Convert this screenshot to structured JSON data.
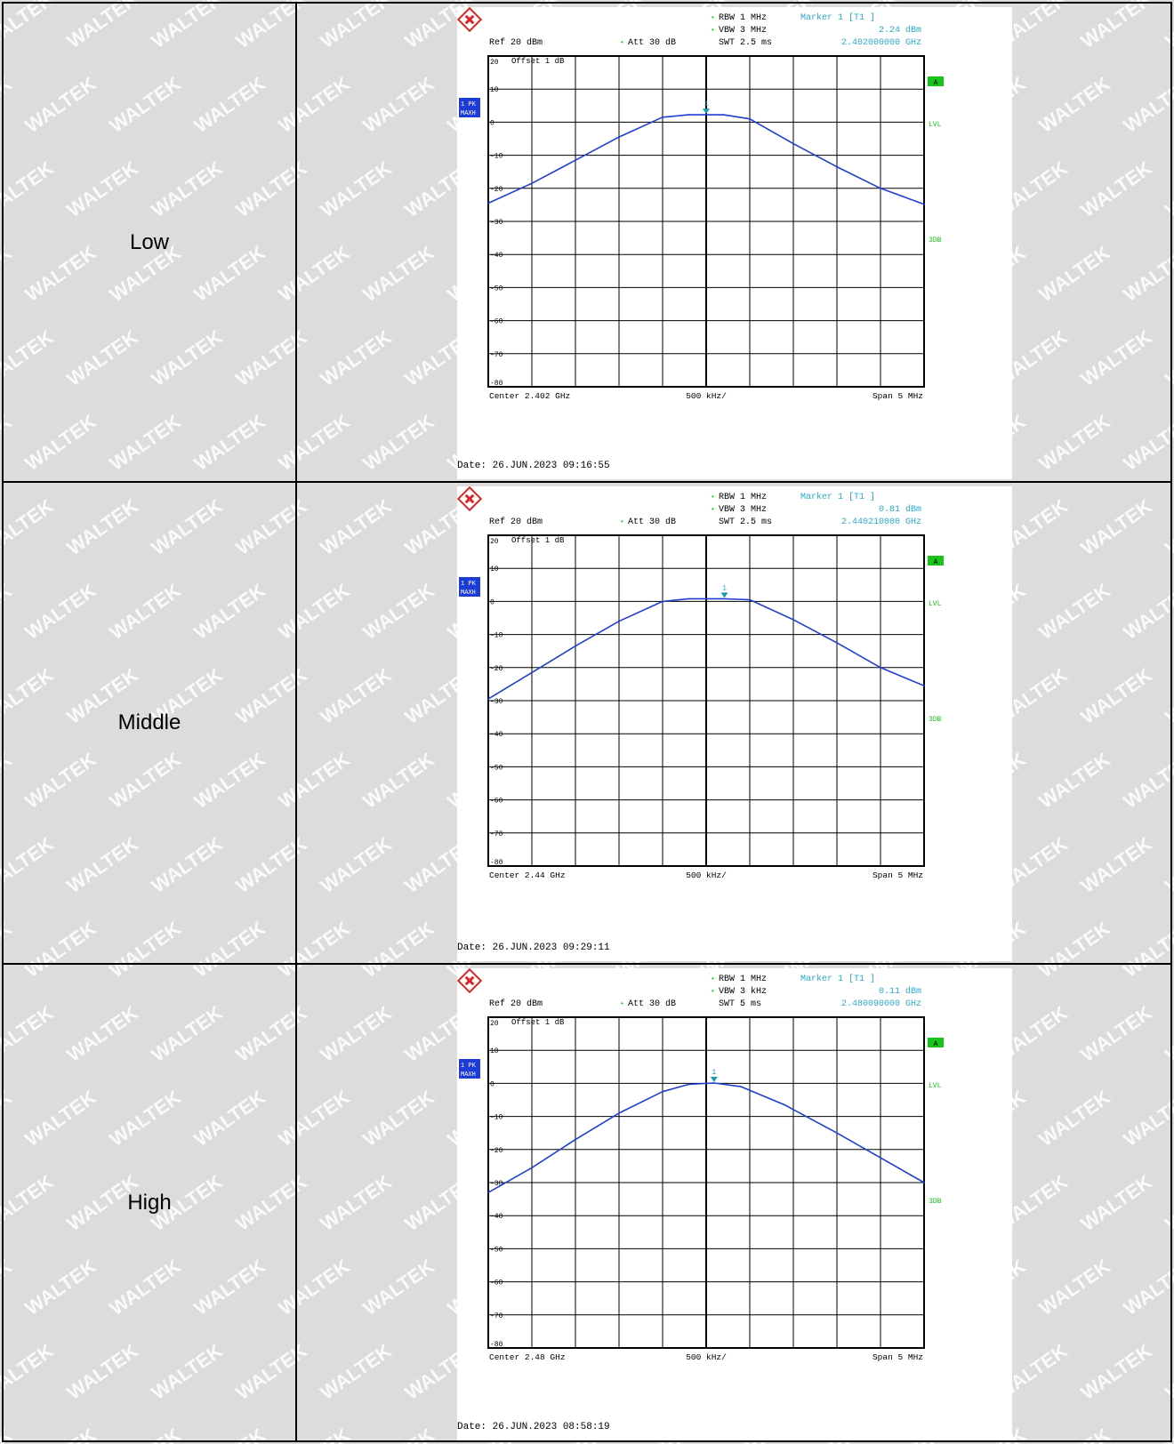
{
  "watermark": "WALTEK",
  "colors": {
    "trace": "#1f3fd0",
    "marker": "#1a9bb0",
    "info": "#2aa9c9",
    "green": "#18c418",
    "badge": "#1d3bd6",
    "grid": "#000000"
  },
  "rows": [
    {
      "label": "Low",
      "info": {
        "rbw": "RBW 1 MHz",
        "vbw": "VBW 3 MHz",
        "swt": "SWT 2.5 ms",
        "ref": "Ref  20 dBm",
        "att": "Att  30 dB",
        "marker_title": "Marker 1 [T1 ]",
        "marker_level": "2.24 dBm",
        "marker_freq": "2.402000000 GHz"
      },
      "offset": "Offset  1 dB",
      "center": "Center 2.402 GHz",
      "per_div": "500 kHz/",
      "span": "Span 5 MHz",
      "date": "Date: 26.JUN.2023  09:16:55",
      "badge_1": "1 PK",
      "badge_2": "MAXH",
      "side_a": "A",
      "side_lvl": "LVL",
      "side_3db": "3DB",
      "marker_label": "1"
    },
    {
      "label": "Middle",
      "info": {
        "rbw": "RBW 1 MHz",
        "vbw": "VBW 3 MHz",
        "swt": "SWT 2.5 ms",
        "ref": "Ref  20 dBm",
        "att": "Att  30 dB",
        "marker_title": "Marker 1 [T1 ]",
        "marker_level": "0.81 dBm",
        "marker_freq": "2.440210000 GHz"
      },
      "offset": "Offset  1 dB",
      "center": "Center 2.44 GHz",
      "per_div": "500 kHz/",
      "span": "Span 5 MHz",
      "date": "Date: 26.JUN.2023  09:29:11",
      "badge_1": "1 PK",
      "badge_2": "MAXH",
      "side_a": "A",
      "side_lvl": "LVL",
      "side_3db": "3DB",
      "marker_label": "1"
    },
    {
      "label": "High",
      "info": {
        "rbw": "RBW 1 MHz",
        "vbw": "VBW 3 kHz",
        "swt": "SWT 5 ms",
        "ref": "Ref  20 dBm",
        "att": "Att  30 dB",
        "marker_title": "Marker 1 [T1 ]",
        "marker_level": "0.11 dBm",
        "marker_freq": "2.480090000 GHz"
      },
      "offset": "Offset  1 dB",
      "center": "Center 2.48 GHz",
      "per_div": "500 kHz/",
      "span": "Span 5 MHz",
      "date": "Date: 26.JUN.2023  08:58:19",
      "badge_1": "1 PK",
      "badge_2": "MAXH",
      "side_a": "A",
      "side_lvl": "LVL",
      "side_3db": "3DB",
      "marker_label": "1"
    }
  ],
  "chart_data": [
    {
      "type": "line",
      "xlabel": "",
      "ylabel": "",
      "xlim": [
        -2.5,
        2.5
      ],
      "ylim": [
        -80,
        20
      ],
      "yticks": [
        20,
        10,
        0,
        -10,
        -20,
        -30,
        -40,
        -50,
        -60,
        -70,
        -80
      ],
      "grid": true,
      "series": [
        {
          "x": [
            -2.5,
            -2.0,
            -1.5,
            -1.0,
            -0.5,
            -0.2,
            0.0,
            0.2,
            0.5,
            1.0,
            1.5,
            2.0,
            2.5
          ],
          "values": [
            -24.5,
            -18.5,
            -11.5,
            -4.5,
            1.5,
            2.24,
            2.24,
            2.24,
            1.0,
            -6.5,
            -13.5,
            -20.0,
            -24.8
          ]
        }
      ],
      "marker": {
        "x": 0.0,
        "y": 2.24
      }
    },
    {
      "type": "line",
      "xlabel": "",
      "ylabel": "",
      "xlim": [
        -2.5,
        2.5
      ],
      "ylim": [
        -80,
        20
      ],
      "yticks": [
        20,
        10,
        0,
        -10,
        -20,
        -30,
        -40,
        -50,
        -60,
        -70,
        -80
      ],
      "grid": true,
      "series": [
        {
          "x": [
            -2.5,
            -2.0,
            -1.5,
            -1.0,
            -0.5,
            -0.2,
            0.21,
            0.5,
            1.0,
            1.5,
            2.0,
            2.5
          ],
          "values": [
            -29.5,
            -21.5,
            -13.5,
            -6.0,
            0.0,
            0.81,
            0.81,
            0.5,
            -5.5,
            -12.5,
            -20.0,
            -25.5
          ]
        }
      ],
      "marker": {
        "x": 0.21,
        "y": 0.81
      }
    },
    {
      "type": "line",
      "xlabel": "",
      "ylabel": "",
      "xlim": [
        -2.5,
        2.5
      ],
      "ylim": [
        -80,
        20
      ],
      "yticks": [
        20,
        10,
        0,
        -10,
        -20,
        -30,
        -40,
        -50,
        -60,
        -70,
        -80
      ],
      "grid": true,
      "series": [
        {
          "x": [
            -2.5,
            -2.0,
            -1.5,
            -1.0,
            -0.5,
            -0.2,
            0.09,
            0.4,
            0.9,
            1.5,
            2.0,
            2.5
          ],
          "values": [
            -33.0,
            -25.5,
            -17.0,
            -9.0,
            -2.5,
            -0.3,
            0.11,
            -1.0,
            -6.5,
            -15.0,
            -22.5,
            -30.0
          ]
        }
      ],
      "marker": {
        "x": 0.09,
        "y": 0.11
      }
    }
  ]
}
